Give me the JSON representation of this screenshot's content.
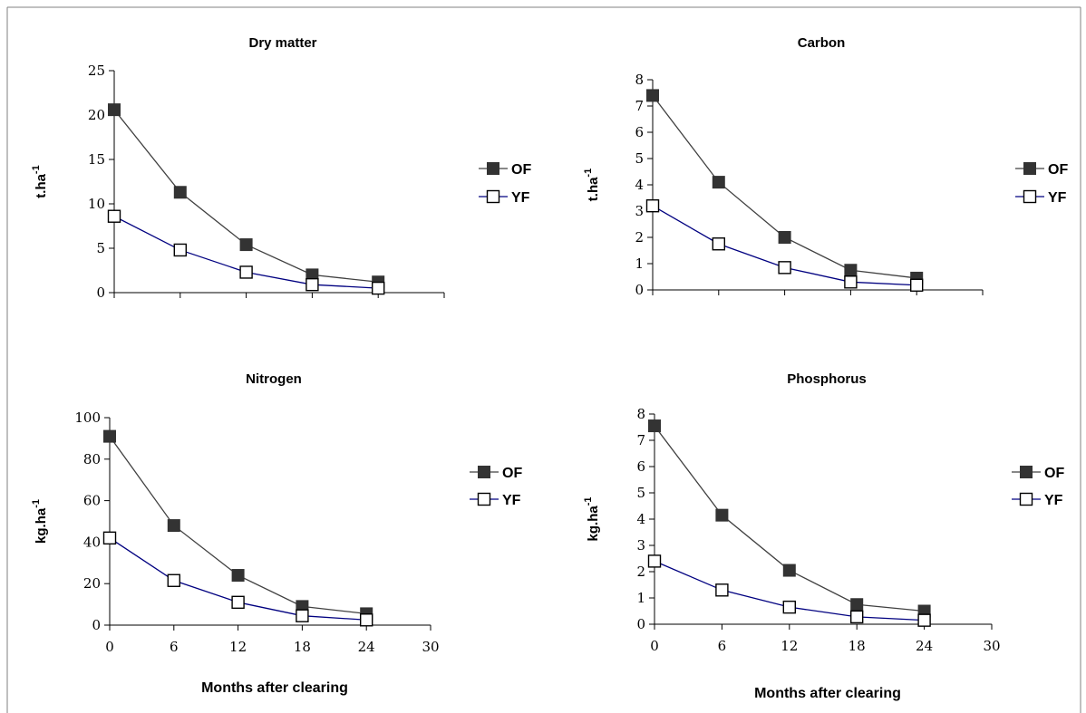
{
  "colors": {
    "frame": "#808080",
    "axis": "#000000",
    "of_line": "#404040",
    "of_marker": "#333333",
    "yf_line": "#000080",
    "yf_marker_fill": "#ffffff",
    "yf_marker_stroke": "#000000"
  },
  "chart_data": [
    {
      "type": "line",
      "title": "Dry matter",
      "ylabel": "t.ha",
      "ylabel_sup": "-1",
      "xlabel": "",
      "x": [
        0,
        6,
        12,
        18,
        24
      ],
      "xlim": [
        0,
        30
      ],
      "xticks": [
        0,
        6,
        12,
        18,
        24,
        30
      ],
      "xtick_labels_shown": false,
      "ylim": [
        0,
        25
      ],
      "yticks": [
        0,
        5,
        10,
        15,
        20,
        25
      ],
      "series": [
        {
          "name": "OF",
          "marker": "filled-square",
          "values": [
            20.6,
            11.3,
            5.4,
            2.0,
            1.2
          ]
        },
        {
          "name": "YF",
          "marker": "open-square",
          "values": [
            8.6,
            4.8,
            2.3,
            0.9,
            0.5
          ]
        }
      ],
      "legend": "right",
      "grid": false
    },
    {
      "type": "line",
      "title": "Carbon",
      "ylabel": "t.ha",
      "ylabel_sup": "-1",
      "xlabel": "",
      "x": [
        0,
        6,
        12,
        18,
        24
      ],
      "xlim": [
        0,
        30
      ],
      "xticks": [
        0,
        6,
        12,
        18,
        24,
        30
      ],
      "xtick_labels_shown": false,
      "ylim": [
        0,
        8
      ],
      "yticks": [
        0,
        1,
        2,
        3,
        4,
        5,
        6,
        7,
        8
      ],
      "series": [
        {
          "name": "OF",
          "marker": "filled-square",
          "values": [
            7.4,
            4.1,
            2.0,
            0.75,
            0.45
          ]
        },
        {
          "name": "YF",
          "marker": "open-square",
          "values": [
            3.2,
            1.75,
            0.85,
            0.3,
            0.18
          ]
        }
      ],
      "legend": "right",
      "grid": false
    },
    {
      "type": "line",
      "title": "Nitrogen",
      "ylabel": "kg.ha",
      "ylabel_sup": "-1",
      "xlabel": "Months after clearing",
      "x": [
        0,
        6,
        12,
        18,
        24
      ],
      "xlim": [
        0,
        30
      ],
      "xticks": [
        0,
        6,
        12,
        18,
        24,
        30
      ],
      "xtick_labels_shown": true,
      "ylim": [
        0,
        100
      ],
      "yticks": [
        0,
        20,
        40,
        60,
        80,
        100
      ],
      "series": [
        {
          "name": "OF",
          "marker": "filled-square",
          "values": [
            91,
            48,
            24,
            9,
            5.5
          ]
        },
        {
          "name": "YF",
          "marker": "open-square",
          "values": [
            42,
            21.5,
            11,
            4.5,
            2.5
          ]
        }
      ],
      "legend": "right",
      "grid": false
    },
    {
      "type": "line",
      "title": "Phosphorus",
      "ylabel": "kg.ha",
      "ylabel_sup": "-1",
      "xlabel": "Months after clearing",
      "x": [
        0,
        6,
        12,
        18,
        24
      ],
      "xlim": [
        0,
        30
      ],
      "xticks": [
        0,
        6,
        12,
        18,
        24,
        30
      ],
      "xtick_labels_shown": true,
      "ylim": [
        0,
        8
      ],
      "yticks": [
        0,
        1,
        2,
        3,
        4,
        5,
        6,
        7,
        8
      ],
      "series": [
        {
          "name": "OF",
          "marker": "filled-square",
          "values": [
            7.55,
            4.15,
            2.05,
            0.75,
            0.5
          ]
        },
        {
          "name": "YF",
          "marker": "open-square",
          "values": [
            2.4,
            1.3,
            0.65,
            0.28,
            0.15
          ]
        }
      ],
      "legend": "right",
      "grid": false
    }
  ]
}
